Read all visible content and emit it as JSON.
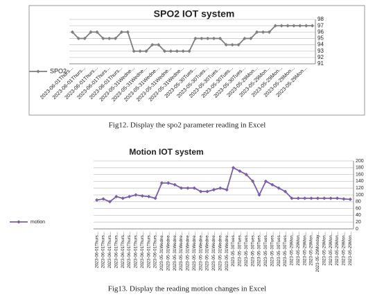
{
  "chart_data": [
    {
      "type": "line",
      "title": "SPO2 IOT system",
      "categories": [
        "2023-06-01Thurs...",
        null,
        "2023-06-01Thurs...",
        null,
        "2023-06-01Thurs...",
        null,
        "2023-06-01Thurs...",
        null,
        "2023-06-01Thurs...",
        null,
        "2023-05-31Wedne...",
        null,
        "2023-05-31Wedne...",
        null,
        "2023-05-31Wedne...",
        null,
        "2023-05-31Wedne...",
        null,
        "2023-05-31Wedne...",
        null,
        "2023-05-30Tues...",
        null,
        "2023-05-30Tues...",
        null,
        "2023-05-30Tues...",
        null,
        "2023-05-30Tues...",
        null,
        "2023-05-30Tues...",
        null,
        "2023-05-29Mon...",
        null,
        "2023-05-29Mon...",
        null,
        "2023-05-29Mon...",
        null,
        "2023-05-29Mon...",
        null,
        "2023-05-29Mon...",
        null
      ],
      "series": [
        {
          "name": "SPO2",
          "color": "#7f7f7f",
          "values": [
            96,
            95,
            95,
            96,
            96,
            95,
            95,
            95,
            96,
            96,
            93,
            93,
            93,
            94,
            94,
            93,
            93,
            93,
            93,
            93,
            95,
            95,
            95,
            95,
            95,
            94,
            94,
            94,
            95,
            95,
            96,
            96,
            96,
            97,
            97,
            97,
            97,
            97,
            97,
            97
          ]
        }
      ],
      "ylim": [
        91,
        98
      ],
      "yticks": [
        91,
        92,
        93,
        94,
        95,
        96,
        97,
        98
      ],
      "grid": true,
      "legend": "left",
      "caption": "Fig12. Display the spo2 parameter reading in Excel"
    },
    {
      "type": "line",
      "title": "Motion IOT system",
      "categories": [
        "2023-06-01Thurs...",
        "2023-06-01Thurs...",
        "2023-06-01Thurs...",
        "2023-06-01Thurs...",
        "2023-06-01Thurs...",
        "2023-06-01Thurs...",
        "2023-06-01Thurs...",
        "2023-06-01Thurs...",
        "2023-06-01Thurs...",
        "2023-06-01Thurs...",
        "2023-05-31Wedne...",
        "2023-05-31Wedne...",
        "2023-05-31Wedne...",
        "2023-05-31Wedne...",
        "2023-05-31Wedne...",
        "2023-05-31Wedne...",
        "2023-05-31Wedne...",
        "2023-05-31Wedne...",
        "2023-05-31Wedne...",
        "2023-05-31Wedne...",
        "2023-05-31Wedne...",
        "2023-05-30Tues...",
        "2023-05-30Tues...",
        "2023-05-30Tues...",
        "2023-05-30Tues...",
        "2023-05-30Tues...",
        "2023-05-30Tues...",
        "2023-05-30Tues...",
        "2023-05-30Tues...",
        "2023-05-30Tues...",
        "2023-05-29Mon...",
        "2023-05-29Mon...",
        "2023-05-29Mon...",
        "2023-05-29Mon...",
        "2023-05-29Monday...",
        "2023-05-29Mon...",
        "2023-05-29Mon...",
        "2023-05-29Mon...",
        "2023-05-29Mon...",
        "2023-05-29Mon..."
      ],
      "series": [
        {
          "name": "motion",
          "color": "#7b5ea7",
          "values": [
            85,
            88,
            80,
            95,
            90,
            95,
            100,
            97,
            95,
            90,
            135,
            135,
            130,
            120,
            120,
            120,
            110,
            110,
            115,
            120,
            115,
            180,
            170,
            160,
            140,
            100,
            140,
            130,
            120,
            110,
            90,
            90,
            90,
            90,
            90,
            90,
            90,
            90,
            88,
            87
          ]
        }
      ],
      "ylim": [
        0,
        200
      ],
      "yticks": [
        0,
        20,
        40,
        60,
        80,
        100,
        120,
        140,
        160,
        180,
        200
      ],
      "grid": true,
      "legend": "left",
      "caption": "Fig13. Display the reading motion changes in Excel"
    }
  ]
}
